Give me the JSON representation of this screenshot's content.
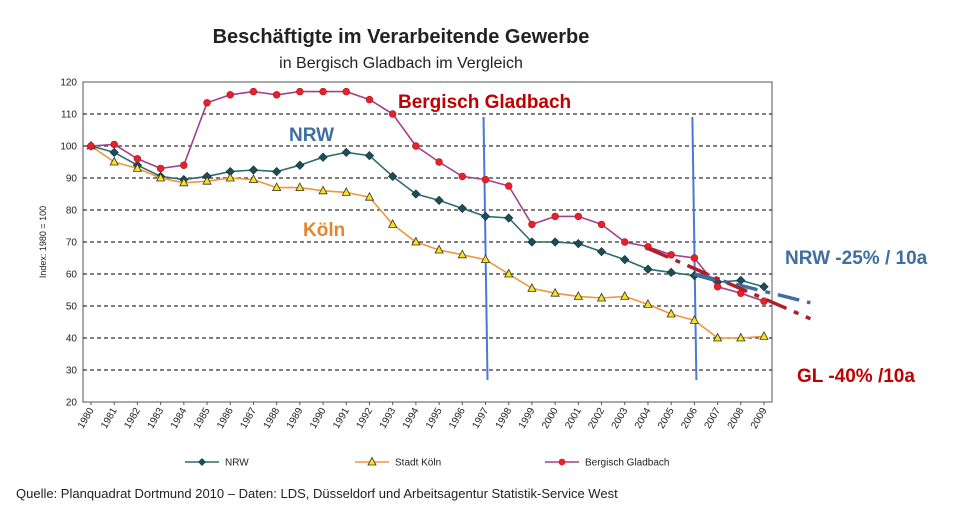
{
  "chart_data": {
    "type": "line",
    "title": "Beschäftigte im Verarbeitende Gewerbe",
    "subtitle": "in Bergisch Gladbach im Vergleich",
    "ylabel": "Index: 1980 = 100",
    "ylim": [
      20,
      120
    ],
    "yticks": [
      20,
      30,
      40,
      50,
      60,
      70,
      80,
      90,
      100,
      110,
      120
    ],
    "grid": "horizontal dashed",
    "legend_position": "bottom",
    "categories": [
      "1980",
      "1981",
      "1982",
      "1983",
      "1984",
      "1985",
      "1986",
      "1987",
      "1988",
      "1989",
      "1990",
      "1991",
      "1992",
      "1993",
      "1994",
      "1995",
      "1996",
      "1997",
      "1998",
      "1999",
      "2000",
      "2001",
      "2002",
      "2003",
      "2004",
      "2005",
      "2006",
      "2007",
      "2008",
      "2009"
    ],
    "series": [
      {
        "name": "NRW",
        "color": "#2e6d6d",
        "marker": "diamond",
        "values": [
          100,
          98,
          94,
          90.5,
          89.5,
          90.5,
          92,
          92.5,
          92,
          94,
          96.5,
          98,
          97,
          90.5,
          85,
          83,
          80.5,
          78,
          77.5,
          70,
          70,
          69.5,
          67,
          64.5,
          61.5,
          60.5,
          59.5,
          57.5,
          58,
          56
        ]
      },
      {
        "name": "Stadt Köln",
        "color": "#f0953c",
        "marker": "triangle",
        "values": [
          100,
          95,
          93,
          90,
          88.5,
          89,
          90,
          89.5,
          87,
          87,
          86,
          85.5,
          84,
          75.5,
          70,
          67.5,
          66,
          64.5,
          60,
          55.5,
          54,
          53,
          52.5,
          53,
          50.5,
          47.5,
          45.5,
          40,
          40,
          40.5
        ]
      },
      {
        "name": "Bergisch Gladbach",
        "color": "#a0428c",
        "marker": "circle",
        "values": [
          100,
          100.5,
          96,
          93,
          94,
          113.5,
          116,
          117,
          116,
          117,
          117,
          117,
          114.5,
          110,
          100,
          95,
          90.5,
          89.5,
          87.5,
          75.5,
          78,
          78,
          75.5,
          70,
          68.5,
          66,
          65,
          56,
          54,
          51.5
        ]
      }
    ],
    "vertical_markers": [
      "1997",
      "2006"
    ],
    "annotations": {
      "bergisch_gladbach": "Bergisch Gladbach",
      "nrw": "NRW",
      "koeln": "Köln",
      "nrw_trend": "NRW -25% / 10a",
      "gl_trend": "GL -40% /10a"
    },
    "trend_lines": [
      {
        "name": "NRW",
        "color": "#3e6fa0",
        "from": [
          "2006",
          60
        ],
        "to": [
          "2011",
          51
        ]
      },
      {
        "name": "GL",
        "color": "#b01e2a",
        "from": [
          "2004",
          68
        ],
        "to": [
          "2011",
          46
        ]
      }
    ],
    "source": "Quelle: Planquadrat Dortmund 2010 – Daten: LDS, Düsseldorf und Arbeitsagentur Statistik-Service West"
  },
  "colors": {
    "grid": "#333333",
    "marker_red": "#e8202a",
    "marker_navy": "#1e4d5a",
    "marker_yellow": "#f7e21b",
    "vline": "#4a78d8",
    "anno_red": "#c00000",
    "anno_blue": "#3e6fa0",
    "anno_orange": "#e8852a"
  }
}
